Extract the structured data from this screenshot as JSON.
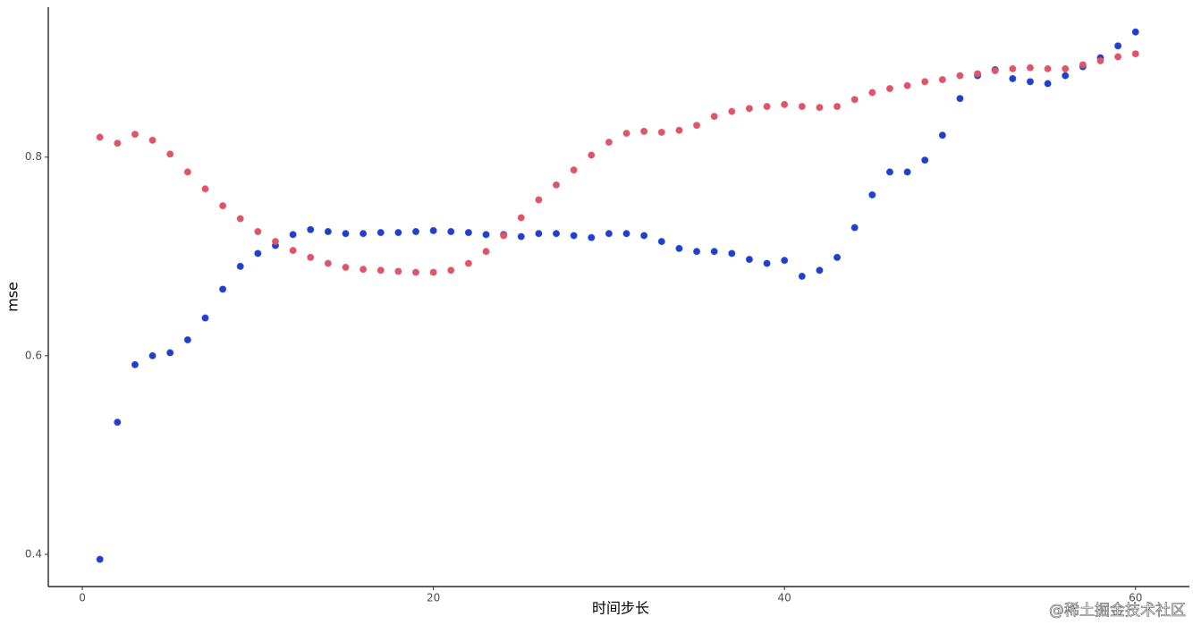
{
  "chart_data": {
    "type": "scatter",
    "x_label": "时间步长",
    "y_label": "mse",
    "watermark": "@稀土掘金技术社区",
    "x": [
      1,
      2,
      3,
      4,
      5,
      6,
      7,
      8,
      9,
      10,
      11,
      12,
      13,
      14,
      15,
      16,
      17,
      18,
      19,
      20,
      21,
      22,
      23,
      24,
      25,
      26,
      27,
      28,
      29,
      30,
      31,
      32,
      33,
      34,
      35,
      36,
      37,
      38,
      39,
      40,
      41,
      42,
      43,
      44,
      45,
      46,
      47,
      48,
      49,
      50,
      51,
      52,
      53,
      54,
      55,
      56,
      57,
      58,
      59,
      60
    ],
    "series": [
      {
        "color": "#2040cc",
        "values": [
          0.395,
          0.533,
          0.591,
          0.6,
          0.603,
          0.616,
          0.638,
          0.667,
          0.69,
          0.703,
          0.711,
          0.722,
          0.727,
          0.725,
          0.723,
          0.723,
          0.724,
          0.724,
          0.725,
          0.726,
          0.725,
          0.724,
          0.722,
          0.722,
          0.72,
          0.723,
          0.723,
          0.721,
          0.719,
          0.723,
          0.723,
          0.721,
          0.715,
          0.708,
          0.705,
          0.705,
          0.703,
          0.697,
          0.693,
          0.696,
          0.68,
          0.686,
          0.699,
          0.729,
          0.762,
          0.785,
          0.785,
          0.797,
          0.822,
          0.859,
          0.882,
          0.888,
          0.879,
          0.876,
          0.874,
          0.882,
          0.891,
          0.9,
          0.912,
          0.926
        ]
      },
      {
        "color": "#dd5566",
        "values": [
          0.82,
          0.814,
          0.823,
          0.817,
          0.803,
          0.785,
          0.768,
          0.751,
          0.738,
          0.725,
          0.715,
          0.706,
          0.699,
          0.693,
          0.689,
          0.687,
          0.686,
          0.685,
          0.684,
          0.684,
          0.686,
          0.693,
          0.705,
          0.721,
          0.739,
          0.757,
          0.772,
          0.787,
          0.802,
          0.815,
          0.824,
          0.826,
          0.825,
          0.827,
          0.832,
          0.841,
          0.846,
          0.849,
          0.851,
          0.853,
          0.851,
          0.85,
          0.851,
          0.858,
          0.865,
          0.869,
          0.872,
          0.876,
          0.878,
          0.882,
          0.884,
          0.887,
          0.889,
          0.89,
          0.889,
          0.889,
          0.893,
          0.897,
          0.901,
          0.904
        ]
      }
    ],
    "xlim": [
      -1.94,
      63.07
    ],
    "ylim": [
      0.3676,
      0.951
    ],
    "xticks": [
      0,
      20,
      40,
      60
    ],
    "yticks": [
      0.4,
      0.6,
      0.8
    ]
  }
}
